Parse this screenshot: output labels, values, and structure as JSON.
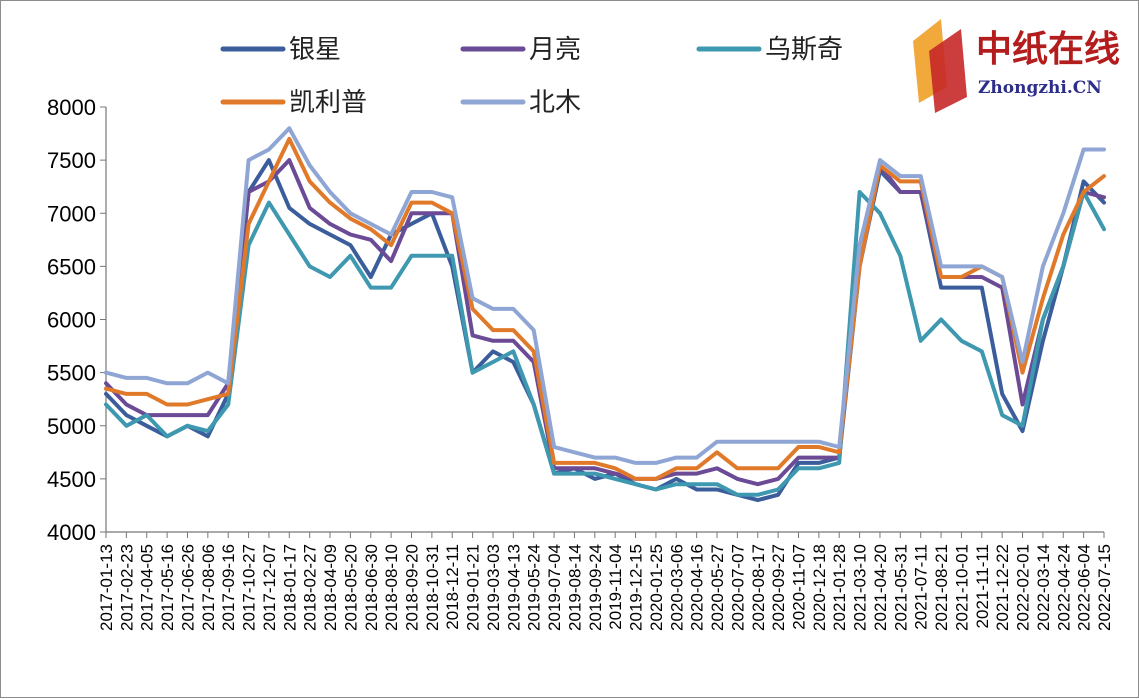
{
  "logo": {
    "cn": "中纸在线",
    "en": "Zhongzhi.CN"
  },
  "chart_data": {
    "type": "line",
    "x": [
      "2017-01-13",
      "2017-02-23",
      "2017-04-05",
      "2017-05-16",
      "2017-06-26",
      "2017-08-06",
      "2017-09-16",
      "2017-10-27",
      "2017-12-07",
      "2018-01-17",
      "2018-02-27",
      "2018-04-09",
      "2018-05-20",
      "2018-06-30",
      "2018-08-10",
      "2018-09-20",
      "2018-10-31",
      "2018-12-11",
      "2019-01-21",
      "2019-03-03",
      "2019-04-13",
      "2019-05-24",
      "2019-07-04",
      "2019-08-14",
      "2019-09-24",
      "2019-11-04",
      "2019-12-15",
      "2020-01-25",
      "2020-03-06",
      "2020-04-16",
      "2020-05-27",
      "2020-07-07",
      "2020-08-17",
      "2020-09-27",
      "2020-11-07",
      "2020-12-18",
      "2021-01-28",
      "2021-03-10",
      "2021-04-20",
      "2021-05-31",
      "2021-07-11",
      "2021-08-21",
      "2021-10-01",
      "2021-11-11",
      "2021-12-22",
      "2022-02-01",
      "2022-03-14",
      "2022-04-24",
      "2022-06-04",
      "2022-07-15"
    ],
    "ylim": [
      4000,
      8000
    ],
    "yticks": [
      4000,
      4500,
      5000,
      5500,
      6000,
      6500,
      7000,
      7500,
      8000
    ],
    "legend_position": "top",
    "series": [
      {
        "name": "银星",
        "color": "#3b5d9c",
        "values": [
          5300,
          5100,
          5000,
          4900,
          5000,
          4900,
          5300,
          7200,
          7500,
          7050,
          6900,
          6800,
          6700,
          6400,
          6800,
          6900,
          7000,
          6500,
          5500,
          5700,
          5600,
          5200,
          4550,
          4600,
          4500,
          4550,
          4450,
          4400,
          4500,
          4400,
          4400,
          4350,
          4300,
          4350,
          4650,
          4650,
          4700,
          6500,
          7400,
          7200,
          7200,
          6300,
          6300,
          6300,
          5300,
          4950,
          5800,
          6500,
          7300,
          7100
        ]
      },
      {
        "name": "月亮",
        "color": "#6b4a96",
        "values": [
          5400,
          5200,
          5100,
          5100,
          5100,
          5100,
          5400,
          7200,
          7300,
          7500,
          7050,
          6900,
          6800,
          6750,
          6550,
          7000,
          7000,
          7000,
          5850,
          5800,
          5800,
          5600,
          4600,
          4600,
          4600,
          4550,
          4500,
          4500,
          4550,
          4550,
          4600,
          4500,
          4450,
          4500,
          4700,
          4700,
          4700,
          6700,
          7450,
          7200,
          7200,
          6400,
          6400,
          6400,
          6300,
          5200,
          6000,
          6500,
          7200,
          7150
        ]
      },
      {
        "name": "乌斯奇",
        "color": "#3d98b0",
        "values": [
          5200,
          5000,
          5100,
          4900,
          5000,
          4950,
          5200,
          6700,
          7100,
          6800,
          6500,
          6400,
          6600,
          6300,
          6300,
          6600,
          6600,
          6600,
          5500,
          5600,
          5700,
          5200,
          4550,
          4550,
          4550,
          4500,
          4450,
          4400,
          4450,
          4450,
          4450,
          4350,
          4350,
          4400,
          4600,
          4600,
          4650,
          7200,
          7000,
          6600,
          5800,
          6000,
          5800,
          5700,
          5100,
          5000,
          6000,
          6500,
          7200,
          6850
        ]
      },
      {
        "name": "凯利普",
        "color": "#e07a2a",
        "values": [
          5350,
          5300,
          5300,
          5200,
          5200,
          5250,
          5300,
          6900,
          7300,
          7700,
          7300,
          7100,
          6950,
          6850,
          6700,
          7100,
          7100,
          7000,
          6100,
          5900,
          5900,
          5700,
          4650,
          4650,
          4650,
          4600,
          4500,
          4500,
          4600,
          4600,
          4750,
          4600,
          4600,
          4600,
          4800,
          4800,
          4750,
          6500,
          7450,
          7300,
          7300,
          6400,
          6400,
          6500,
          6400,
          5500,
          6200,
          6800,
          7200,
          7350
        ]
      },
      {
        "name": "北木",
        "color": "#8fa6d4",
        "values": [
          5500,
          5450,
          5450,
          5400,
          5400,
          5500,
          5400,
          7500,
          7600,
          7800,
          7450,
          7200,
          7000,
          6900,
          6800,
          7200,
          7200,
          7150,
          6200,
          6100,
          6100,
          5900,
          4800,
          4750,
          4700,
          4700,
          4650,
          4650,
          4700,
          4700,
          4850,
          4850,
          4850,
          4850,
          4850,
          4850,
          4800,
          6700,
          7500,
          7350,
          7350,
          6500,
          6500,
          6500,
          6400,
          5600,
          6500,
          7000,
          7600,
          7600
        ]
      }
    ]
  }
}
